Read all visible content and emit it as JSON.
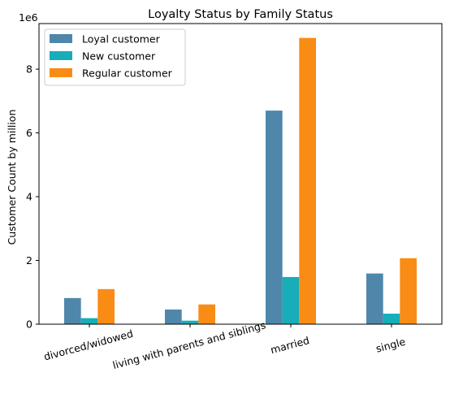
{
  "chart_data": {
    "type": "bar",
    "title": "Loyalty Status by Family Status",
    "xlabel": "",
    "ylabel": "Customer Count by million",
    "y_offset_label": "1e6",
    "categories": [
      "divorced/widowed",
      "living with parents and siblings",
      "married",
      "single"
    ],
    "series": [
      {
        "name": "Loyal customer",
        "color": "#4e87aa",
        "values": [
          820000,
          460000,
          6700000,
          1590000
        ]
      },
      {
        "name": "New customer",
        "color": "#17adb9",
        "values": [
          190000,
          110000,
          1480000,
          330000
        ]
      },
      {
        "name": "Regular customer",
        "color": "#f98c14",
        "values": [
          1100000,
          620000,
          8980000,
          2070000
        ]
      }
    ],
    "ylim": [
      0,
      9430000
    ],
    "y_ticks": [
      0,
      2000000,
      4000000,
      6000000,
      8000000
    ],
    "y_tick_labels": [
      "0",
      "2",
      "4",
      "6",
      "8"
    ],
    "grid": false,
    "legend_position": "top-left"
  }
}
